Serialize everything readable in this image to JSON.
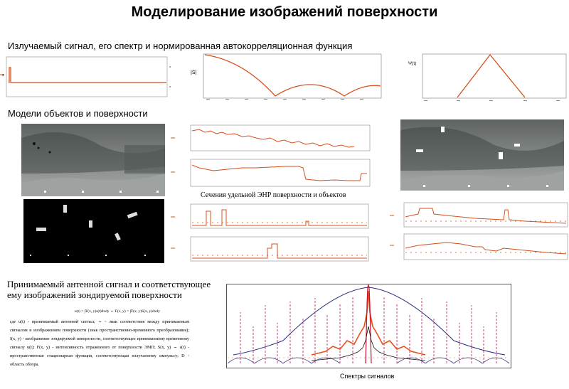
{
  "title": "Моделирование изображений поверхности",
  "section1": "Излучаемый сигнал, его  спектр  и нормированная автокорреляционная функция",
  "section2": "Модели объектов и поверхности",
  "caption_enr": "Сечения удельной ЭНР  поверхности и объектов",
  "section3": {
    "line1": "Принимаемый антенной сигнал и соответствующее",
    "line2": "ему изображений зондируемой поверхности"
  },
  "equation": "u(t) = ∫F(x, y)s(t)dxdy ⇔ F(x, y) = ∫F(x, y)S(x, y)dxdy",
  "description": "где   u(t) - принимаемый антенной сигнал; ⇔ - знак соответствия между принимаемым сигналом и изображением поверхности (знак пространственно-временного преобразования); I(x, y) - изображение зондируемой поверхности, соответствующее принимаемому временному сигналу u(t); F(x, y) - интенсивность отраженного от поверхности ЭМП; S(x, y) ⇔ s(t) - пространственная стационарная функция, соответствующая излучаемому импульсу; D - область обзора.",
  "spectra_caption": "Спектры сигналов",
  "colors": {
    "curve": "#d4501a",
    "spectrum_red": "#c8102e",
    "spectrum_pink": "#c03070",
    "spectrum_blue": "#2a2a80"
  }
}
